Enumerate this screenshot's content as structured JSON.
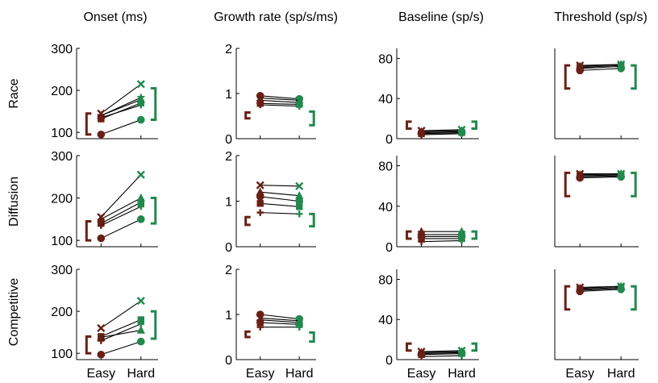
{
  "colors": {
    "easy": "#6b1f14",
    "hard": "#1f8a4c",
    "axis": "#000000",
    "connector": "#000000"
  },
  "figure": {
    "column_titles": [
      "Onset (ms)",
      "Growth rate (sp/s/ms)",
      "Baseline (sp/s)",
      "Threshold (sp/s)"
    ],
    "row_labels": [
      "Race",
      "Diffusion",
      "Competitive"
    ],
    "x_tick_labels": [
      "Easy",
      "Hard"
    ]
  },
  "chart_data": [
    {
      "type": "line",
      "row": "Race",
      "column": "Onset (ms)",
      "categories": [
        "Easy",
        "Hard"
      ],
      "ylim": [
        85,
        300
      ],
      "yticks": [
        100,
        200,
        300
      ],
      "series": [
        {
          "marker": "x",
          "values": [
            145,
            215
          ]
        },
        {
          "marker": "star",
          "values": [
            140,
            183
          ]
        },
        {
          "marker": "triangle",
          "values": [
            140,
            178
          ]
        },
        {
          "marker": "square",
          "values": [
            132,
            170
          ]
        },
        {
          "marker": "plus",
          "values": [
            135,
            165
          ]
        },
        {
          "marker": "circle",
          "values": [
            95,
            130
          ]
        }
      ],
      "easy_range": [
        95,
        145
      ],
      "hard_range": [
        130,
        205
      ]
    },
    {
      "type": "line",
      "row": "Race",
      "column": "Growth rate (sp/s/ms)",
      "categories": [
        "Easy",
        "Hard"
      ],
      "ylim": [
        0,
        2
      ],
      "yticks": [
        0,
        1,
        2
      ],
      "series": [
        {
          "marker": "circle",
          "values": [
            0.95,
            0.88
          ]
        },
        {
          "marker": "x",
          "values": [
            0.9,
            0.85
          ]
        },
        {
          "marker": "triangle",
          "values": [
            0.85,
            0.8
          ]
        },
        {
          "marker": "square",
          "values": [
            0.78,
            0.76
          ]
        },
        {
          "marker": "plus",
          "values": [
            0.75,
            0.72
          ]
        }
      ],
      "easy_range": [
        0.45,
        0.58
      ],
      "hard_range": [
        0.3,
        0.6
      ]
    },
    {
      "type": "line",
      "row": "Race",
      "column": "Baseline (sp/s)",
      "categories": [
        "Easy",
        "Hard"
      ],
      "ylim": [
        0,
        90
      ],
      "yticks": [
        0,
        40,
        80
      ],
      "series": [
        {
          "marker": "x",
          "values": [
            8,
            9
          ]
        },
        {
          "marker": "triangle",
          "values": [
            7,
            8
          ]
        },
        {
          "marker": "circle",
          "values": [
            6,
            7
          ]
        },
        {
          "marker": "square",
          "values": [
            5,
            6
          ]
        },
        {
          "marker": "plus",
          "values": [
            4,
            5
          ]
        }
      ],
      "easy_range": [
        10,
        17
      ],
      "hard_range": [
        10,
        17
      ]
    },
    {
      "type": "line",
      "row": "Race",
      "column": "Threshold (sp/s)",
      "categories": [
        "Easy",
        "Hard"
      ],
      "ylim": [
        0,
        90
      ],
      "yticks": [],
      "series": [
        {
          "marker": "x",
          "values": [
            73,
            74
          ]
        },
        {
          "marker": "triangle",
          "values": [
            72,
            74
          ]
        },
        {
          "marker": "square",
          "values": [
            71,
            73
          ]
        },
        {
          "marker": "plus",
          "values": [
            70,
            72
          ]
        },
        {
          "marker": "circle",
          "values": [
            68,
            70
          ]
        }
      ],
      "easy_range": [
        50,
        73
      ],
      "hard_range": [
        50,
        73
      ]
    },
    {
      "type": "line",
      "row": "Diffusion",
      "column": "Onset (ms)",
      "categories": [
        "Easy",
        "Hard"
      ],
      "ylim": [
        85,
        300
      ],
      "yticks": [
        100,
        200,
        300
      ],
      "series": [
        {
          "marker": "x",
          "values": [
            155,
            255
          ]
        },
        {
          "marker": "triangle",
          "values": [
            150,
            200
          ]
        },
        {
          "marker": "square",
          "values": [
            140,
            190
          ]
        },
        {
          "marker": "plus",
          "values": [
            135,
            180
          ]
        },
        {
          "marker": "circle",
          "values": [
            105,
            150
          ]
        }
      ],
      "easy_range": [
        100,
        145
      ],
      "hard_range": [
        140,
        200
      ]
    },
    {
      "type": "line",
      "row": "Diffusion",
      "column": "Growth rate (sp/s/ms)",
      "categories": [
        "Easy",
        "Hard"
      ],
      "ylim": [
        0,
        2
      ],
      "yticks": [
        0,
        1,
        2
      ],
      "series": [
        {
          "marker": "x",
          "values": [
            1.35,
            1.33
          ]
        },
        {
          "marker": "triangle",
          "values": [
            1.2,
            1.12
          ]
        },
        {
          "marker": "circle",
          "values": [
            1.1,
            1.0
          ]
        },
        {
          "marker": "square",
          "values": [
            0.95,
            0.88
          ]
        },
        {
          "marker": "plus",
          "values": [
            0.75,
            0.72
          ]
        }
      ],
      "easy_range": [
        0.48,
        0.65
      ],
      "hard_range": [
        0.45,
        0.72
      ]
    },
    {
      "type": "line",
      "row": "Diffusion",
      "column": "Baseline (sp/s)",
      "categories": [
        "Easy",
        "Hard"
      ],
      "ylim": [
        0,
        90
      ],
      "yticks": [
        0,
        40,
        80
      ],
      "series": [
        {
          "marker": "triangle",
          "values": [
            15,
            15
          ]
        },
        {
          "marker": "x",
          "values": [
            12,
            12
          ]
        },
        {
          "marker": "circle",
          "values": [
            10,
            10
          ]
        },
        {
          "marker": "square",
          "values": [
            8,
            8
          ]
        },
        {
          "marker": "plus",
          "values": [
            5,
            6
          ]
        }
      ],
      "easy_range": [
        8,
        15
      ],
      "hard_range": [
        8,
        15
      ]
    },
    {
      "type": "line",
      "row": "Diffusion",
      "column": "Threshold (sp/s)",
      "categories": [
        "Easy",
        "Hard"
      ],
      "ylim": [
        0,
        90
      ],
      "yticks": [],
      "series": [
        {
          "marker": "x",
          "values": [
            72,
            72
          ]
        },
        {
          "marker": "triangle",
          "values": [
            71,
            72
          ]
        },
        {
          "marker": "square",
          "values": [
            70,
            71
          ]
        },
        {
          "marker": "plus",
          "values": [
            69,
            70
          ]
        },
        {
          "marker": "circle",
          "values": [
            68,
            69
          ]
        }
      ],
      "easy_range": [
        50,
        73
      ],
      "hard_range": [
        50,
        73
      ]
    },
    {
      "type": "line",
      "row": "Competitive",
      "column": "Onset (ms)",
      "categories": [
        "Easy",
        "Hard"
      ],
      "ylim": [
        85,
        300
      ],
      "yticks": [
        100,
        200,
        300
      ],
      "series": [
        {
          "marker": "x",
          "values": [
            160,
            225
          ]
        },
        {
          "marker": "square",
          "values": [
            140,
            180
          ]
        },
        {
          "marker": "triangle",
          "values": [
            138,
            155
          ]
        },
        {
          "marker": "plus",
          "values": [
            130,
            170
          ]
        },
        {
          "marker": "circle",
          "values": [
            97,
            128
          ]
        }
      ],
      "easy_range": [
        100,
        140
      ],
      "hard_range": [
        135,
        200
      ]
    },
    {
      "type": "line",
      "row": "Competitive",
      "column": "Growth rate (sp/s/ms)",
      "categories": [
        "Easy",
        "Hard"
      ],
      "ylim": [
        0,
        2
      ],
      "yticks": [
        0,
        1,
        2
      ],
      "series": [
        {
          "marker": "circle",
          "values": [
            1.0,
            0.9
          ]
        },
        {
          "marker": "x",
          "values": [
            0.92,
            0.86
          ]
        },
        {
          "marker": "triangle",
          "values": [
            0.88,
            0.82
          ]
        },
        {
          "marker": "square",
          "values": [
            0.82,
            0.78
          ]
        },
        {
          "marker": "plus",
          "values": [
            0.72,
            0.72
          ]
        }
      ],
      "easy_range": [
        0.5,
        0.62
      ],
      "hard_range": [
        0.4,
        0.6
      ]
    },
    {
      "type": "line",
      "row": "Competitive",
      "column": "Baseline (sp/s)",
      "categories": [
        "Easy",
        "Hard"
      ],
      "ylim": [
        0,
        90
      ],
      "yticks": [
        0,
        40,
        80
      ],
      "series": [
        {
          "marker": "x",
          "values": [
            8,
            9
          ]
        },
        {
          "marker": "triangle",
          "values": [
            7,
            8
          ]
        },
        {
          "marker": "circle",
          "values": [
            6,
            7
          ]
        },
        {
          "marker": "square",
          "values": [
            5,
            6
          ]
        },
        {
          "marker": "plus",
          "values": [
            3,
            4
          ]
        }
      ],
      "easy_range": [
        9,
        16
      ],
      "hard_range": [
        9,
        16
      ]
    },
    {
      "type": "line",
      "row": "Competitive",
      "column": "Threshold (sp/s)",
      "categories": [
        "Easy",
        "Hard"
      ],
      "ylim": [
        0,
        90
      ],
      "yticks": [],
      "series": [
        {
          "marker": "x",
          "values": [
            72,
            73
          ]
        },
        {
          "marker": "triangle",
          "values": [
            71,
            73
          ]
        },
        {
          "marker": "square",
          "values": [
            70,
            72
          ]
        },
        {
          "marker": "plus",
          "values": [
            69,
            71
          ]
        },
        {
          "marker": "circle",
          "values": [
            68,
            70
          ]
        }
      ],
      "easy_range": [
        50,
        73
      ],
      "hard_range": [
        50,
        73
      ]
    }
  ]
}
